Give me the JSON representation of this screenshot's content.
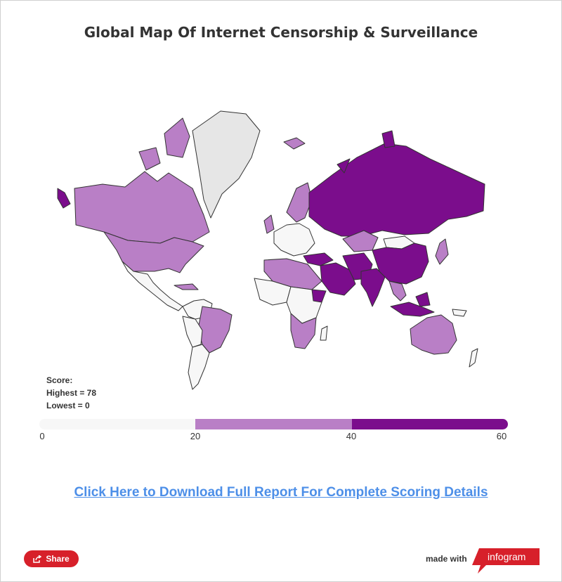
{
  "title": "Global Map Of Internet Censorship & Surveillance",
  "legend": {
    "score_label": "Score:",
    "highest": "Highest = 78",
    "lowest": "Lowest = 0",
    "ticks": [
      "0",
      "20",
      "40",
      "60"
    ],
    "bands": [
      {
        "from": 0,
        "to": 20,
        "color": "#f7f7f7"
      },
      {
        "from": 20,
        "to": 40,
        "color": "#b97fc6"
      },
      {
        "from": 40,
        "to": 60,
        "color": "#7b0d8c"
      }
    ]
  },
  "colors": {
    "no_data": "#e6e6e6",
    "low": "#f7f7f7",
    "medium": "#b97fc6",
    "high": "#7b0d8c",
    "link": "#4d8fe8",
    "brand_red": "#d7202a"
  },
  "link_text": "Click Here to Download Full Report For Complete Scoring Details ",
  "footer": {
    "share_label": "Share",
    "share_icon": "share-icon",
    "made_with": "made with",
    "brand": "infogram"
  }
}
